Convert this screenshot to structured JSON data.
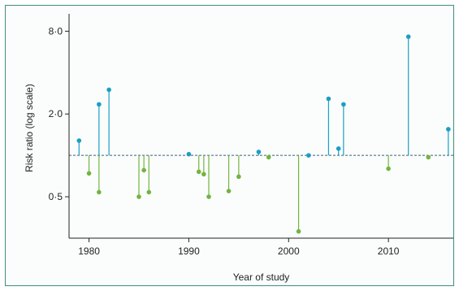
{
  "chart_data": {
    "type": "scatter",
    "subtype": "lollipop",
    "title": "",
    "xlabel": "Year of study",
    "ylabel": "Risk ratio (log scale)",
    "y_scale": "log",
    "reference_line": 1.0,
    "xlim": [
      1978,
      2016.5
    ],
    "ylim": [
      0.25,
      10
    ],
    "xticks": [
      1980,
      1990,
      2000,
      2010
    ],
    "yticks": [
      {
        "value": 8.0,
        "label": "8·0"
      },
      {
        "value": 2.0,
        "label": "2·0"
      },
      {
        "value": 0.5,
        "label": "0·5"
      }
    ],
    "grid": false,
    "legend": "none",
    "colors": {
      "above": "#1b9ec4",
      "below": "#72b53f",
      "reference": "#3b5f70",
      "axis": "#222222",
      "border": "#3e8e80"
    },
    "points": [
      {
        "x": 1979,
        "y": 1.28
      },
      {
        "x": 1980,
        "y": 0.74
      },
      {
        "x": 1981,
        "y": 2.35
      },
      {
        "x": 1981,
        "y": 0.54
      },
      {
        "x": 1982,
        "y": 3.0
      },
      {
        "x": 1985,
        "y": 0.5
      },
      {
        "x": 1985.5,
        "y": 0.78
      },
      {
        "x": 1986,
        "y": 0.54
      },
      {
        "x": 1990,
        "y": 1.02
      },
      {
        "x": 1991,
        "y": 0.76
      },
      {
        "x": 1991.5,
        "y": 0.73
      },
      {
        "x": 1992,
        "y": 0.5
      },
      {
        "x": 1994,
        "y": 0.55
      },
      {
        "x": 1995,
        "y": 0.7
      },
      {
        "x": 1997,
        "y": 1.06
      },
      {
        "x": 1998,
        "y": 0.97
      },
      {
        "x": 2001,
        "y": 0.28
      },
      {
        "x": 2002,
        "y": 1.0
      },
      {
        "x": 2004,
        "y": 2.58
      },
      {
        "x": 2005,
        "y": 1.12
      },
      {
        "x": 2005.5,
        "y": 2.35
      },
      {
        "x": 2010,
        "y": 0.8
      },
      {
        "x": 2012,
        "y": 7.3
      },
      {
        "x": 2014,
        "y": 0.97
      },
      {
        "x": 2016,
        "y": 1.55
      }
    ]
  }
}
